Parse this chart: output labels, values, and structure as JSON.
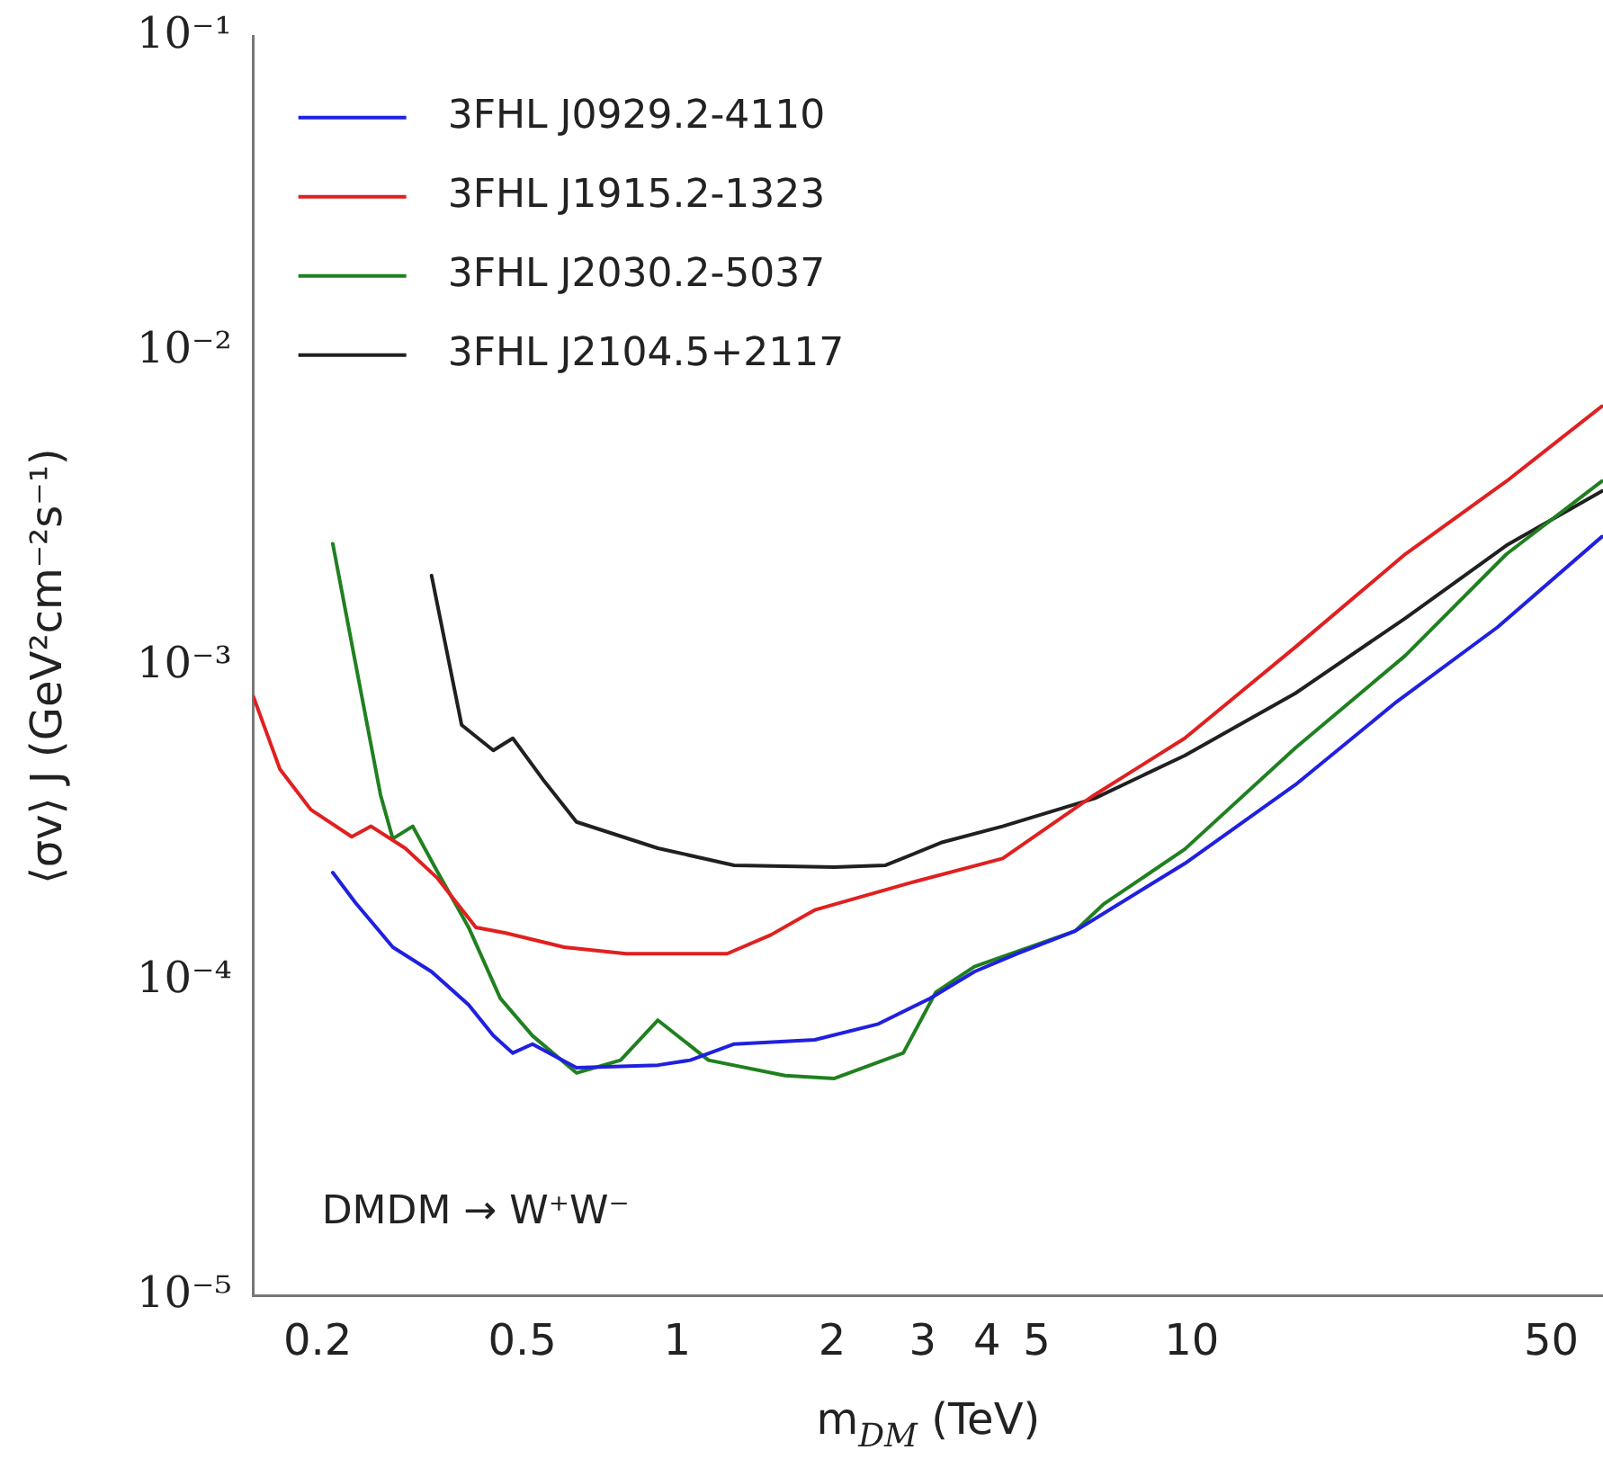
{
  "chart_data": {
    "type": "line",
    "xlabel": "m$_{DM}$ (TeV)",
    "ylabel": "⟨σv⟩ J (GeV²cm⁻²s⁻¹)",
    "log": "xy",
    "xlim": [
      0.15,
      63
    ],
    "ylim": [
      1e-05,
      0.1
    ],
    "xticks": [
      0.2,
      0.5,
      1,
      2,
      3,
      4,
      5,
      10,
      50
    ],
    "yticks": [
      {
        "value": 1e-05,
        "label": "10⁻⁵"
      },
      {
        "value": 0.0001,
        "label": "10⁻⁴"
      },
      {
        "value": 0.001,
        "label": "10⁻³"
      },
      {
        "value": 0.01,
        "label": "10⁻²"
      },
      {
        "value": 0.1,
        "label": "10⁻¹"
      }
    ],
    "grid": false,
    "legend": "top left",
    "marker": "none",
    "line_style": "solid",
    "annotations": [
      "DMDM → W⁺W⁻"
    ],
    "series": [
      {
        "name": "3FHL J0929.2-4110",
        "color": "#2020e0",
        "x": [
          0.214,
          0.237,
          0.28,
          0.333,
          0.393,
          0.439,
          0.479,
          0.523,
          0.637,
          0.917,
          1.06,
          1.29,
          1.85,
          2.46,
          3.1,
          3.78,
          4.57,
          5.93,
          9.69,
          15.9,
          25,
          39.3,
          62.7
        ],
        "values": [
          0.000221,
          0.000177,
          0.000128,
          0.000107,
          8.4e-05,
          6.7e-05,
          5.9e-05,
          6.3e-05,
          5.3e-05,
          5.4e-05,
          5.6e-05,
          6.3e-05,
          6.5e-05,
          7.3e-05,
          8.8e-05,
          0.000107,
          0.000122,
          0.000144,
          0.000236,
          0.00042,
          0.00077,
          0.00133,
          0.00258
        ]
      },
      {
        "name": "3FHL J1915.2-1323",
        "color": "#e02020",
        "x": [
          0.15,
          0.169,
          0.194,
          0.233,
          0.254,
          0.296,
          0.341,
          0.406,
          0.464,
          0.603,
          0.795,
          1.25,
          1.52,
          1.85,
          2.84,
          4.29,
          6.47,
          9.69,
          15.9,
          26,
          40.9,
          62.7
        ],
        "values": [
          0.0008,
          0.00047,
          0.00035,
          0.000287,
          0.00031,
          0.000264,
          0.000213,
          0.000148,
          0.000142,
          0.000128,
          0.000122,
          0.000122,
          0.00014,
          0.000168,
          0.000205,
          0.000245,
          0.00039,
          0.00059,
          0.00115,
          0.00227,
          0.00387,
          0.0067
        ]
      },
      {
        "name": "3FHL J2030.2-5037",
        "color": "#208020",
        "x": [
          0.214,
          0.265,
          0.28,
          0.306,
          0.341,
          0.393,
          0.453,
          0.523,
          0.637,
          0.776,
          0.917,
          1.15,
          1.62,
          2.02,
          2.75,
          3.18,
          3.78,
          5.93,
          6.73,
          9.69,
          15.9,
          26,
          40.9,
          62.7
        ],
        "values": [
          0.00245,
          0.00039,
          0.000283,
          0.00031,
          0.000224,
          0.000148,
          8.8e-05,
          6.7e-05,
          5.1e-05,
          5.6e-05,
          7.5e-05,
          5.6e-05,
          5e-05,
          4.9e-05,
          5.9e-05,
          9.2e-05,
          0.000111,
          0.000144,
          0.000175,
          0.000262,
          0.00055,
          0.00108,
          0.00227,
          0.00387
        ]
      },
      {
        "name": "3FHL J2104.5+2117",
        "color": "#202020",
        "x": [
          0.333,
          0.381,
          0.439,
          0.479,
          0.552,
          0.637,
          0.917,
          1.29,
          2.02,
          2.54,
          3.28,
          4.29,
          6.47,
          9.69,
          15.9,
          26,
          40.9,
          62.7
        ],
        "values": [
          0.00194,
          0.00065,
          0.00054,
          0.00059,
          0.00043,
          0.00032,
          0.000264,
          0.000233,
          0.00023,
          0.000233,
          0.000276,
          0.00031,
          0.00038,
          0.00052,
          0.00082,
          0.00142,
          0.00242,
          0.0036
        ]
      }
    ]
  }
}
